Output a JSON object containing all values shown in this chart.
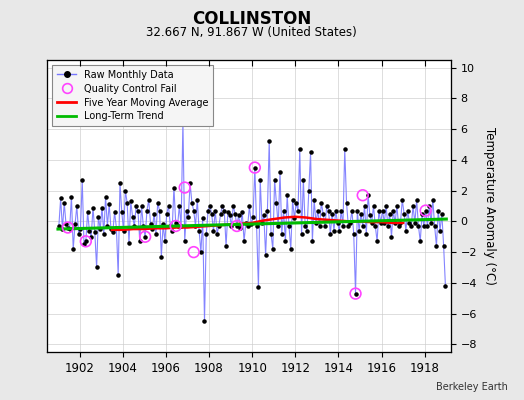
{
  "title": "COLLINSTON",
  "subtitle": "32.667 N, 91.867 W (United States)",
  "ylabel": "Temperature Anomaly (°C)",
  "credit": "Berkeley Earth",
  "xlim": [
    1900.5,
    1919.2
  ],
  "ylim": [
    -8.5,
    10.5
  ],
  "yticks": [
    -8,
    -6,
    -4,
    -2,
    0,
    2,
    4,
    6,
    8,
    10
  ],
  "xticks": [
    1902,
    1904,
    1906,
    1908,
    1910,
    1912,
    1914,
    1916,
    1918
  ],
  "bg_color": "#e8e8e8",
  "plot_bg_color": "#ffffff",
  "raw_line_color": "#7777ff",
  "raw_dot_color": "#000000",
  "qc_fail_color": "#ff44ff",
  "moving_avg_color": "#ff0000",
  "trend_color": "#00bb00",
  "raw_x": [
    1901.042,
    1901.125,
    1901.208,
    1901.292,
    1901.375,
    1901.458,
    1901.542,
    1901.625,
    1901.708,
    1901.792,
    1901.875,
    1901.958,
    1902.042,
    1902.125,
    1902.208,
    1902.292,
    1902.375,
    1902.458,
    1902.542,
    1902.625,
    1902.708,
    1902.792,
    1902.875,
    1902.958,
    1903.042,
    1903.125,
    1903.208,
    1903.292,
    1903.375,
    1903.458,
    1903.542,
    1903.625,
    1903.708,
    1903.792,
    1903.875,
    1903.958,
    1904.042,
    1904.125,
    1904.208,
    1904.292,
    1904.375,
    1904.458,
    1904.542,
    1904.625,
    1904.708,
    1904.792,
    1904.875,
    1904.958,
    1905.042,
    1905.125,
    1905.208,
    1905.292,
    1905.375,
    1905.458,
    1905.542,
    1905.625,
    1905.708,
    1905.792,
    1905.875,
    1905.958,
    1906.042,
    1906.125,
    1906.208,
    1906.292,
    1906.375,
    1906.458,
    1906.542,
    1906.625,
    1906.708,
    1906.792,
    1906.875,
    1906.958,
    1907.042,
    1907.125,
    1907.208,
    1907.292,
    1907.375,
    1907.458,
    1907.542,
    1907.625,
    1907.708,
    1907.792,
    1907.875,
    1907.958,
    1908.042,
    1908.125,
    1908.208,
    1908.292,
    1908.375,
    1908.458,
    1908.542,
    1908.625,
    1908.708,
    1908.792,
    1908.875,
    1908.958,
    1909.042,
    1909.125,
    1909.208,
    1909.292,
    1909.375,
    1909.458,
    1909.542,
    1909.625,
    1909.708,
    1909.792,
    1909.875,
    1909.958,
    1910.042,
    1910.125,
    1910.208,
    1910.292,
    1910.375,
    1910.458,
    1910.542,
    1910.625,
    1910.708,
    1910.792,
    1910.875,
    1910.958,
    1911.042,
    1911.125,
    1911.208,
    1911.292,
    1911.375,
    1911.458,
    1911.542,
    1911.625,
    1911.708,
    1911.792,
    1911.875,
    1911.958,
    1912.042,
    1912.125,
    1912.208,
    1912.292,
    1912.375,
    1912.458,
    1912.542,
    1912.625,
    1912.708,
    1912.792,
    1912.875,
    1912.958,
    1913.042,
    1913.125,
    1913.208,
    1913.292,
    1913.375,
    1913.458,
    1913.542,
    1913.625,
    1913.708,
    1913.792,
    1913.875,
    1913.958,
    1914.042,
    1914.125,
    1914.208,
    1914.292,
    1914.375,
    1914.458,
    1914.542,
    1914.625,
    1914.708,
    1914.792,
    1914.875,
    1914.958,
    1915.042,
    1915.125,
    1915.208,
    1915.292,
    1915.375,
    1915.458,
    1915.542,
    1915.625,
    1915.708,
    1915.792,
    1915.875,
    1915.958,
    1916.042,
    1916.125,
    1916.208,
    1916.292,
    1916.375,
    1916.458,
    1916.542,
    1916.625,
    1916.708,
    1916.792,
    1916.875,
    1916.958,
    1917.042,
    1917.125,
    1917.208,
    1917.292,
    1917.375,
    1917.458,
    1917.542,
    1917.625,
    1917.708,
    1917.792,
    1917.875,
    1917.958,
    1918.042,
    1918.125,
    1918.208,
    1918.292,
    1918.375,
    1918.458,
    1918.542,
    1918.625,
    1918.708,
    1918.792,
    1918.875,
    1918.958
  ],
  "raw_y": [
    -0.3,
    1.5,
    -0.5,
    1.2,
    -0.2,
    -0.4,
    -0.5,
    1.6,
    -1.8,
    -0.2,
    1.0,
    -0.8,
    -0.5,
    2.7,
    -1.5,
    -1.3,
    0.6,
    -0.6,
    -1.0,
    0.9,
    -0.7,
    -3.0,
    0.3,
    -0.5,
    0.9,
    -0.8,
    1.6,
    -0.3,
    1.1,
    -0.5,
    -0.7,
    0.6,
    -0.4,
    -3.5,
    2.5,
    0.6,
    -0.6,
    2.0,
    1.2,
    -1.4,
    1.3,
    0.3,
    -0.3,
    1.0,
    0.7,
    -1.3,
    1.0,
    -0.3,
    -1.0,
    0.7,
    1.4,
    -0.2,
    -0.5,
    0.5,
    -0.8,
    1.2,
    0.7,
    -2.3,
    -0.2,
    -1.3,
    0.5,
    1.0,
    -0.3,
    -0.6,
    2.2,
    -0.1,
    -0.3,
    1.0,
    -0.3,
    6.5,
    -1.3,
    0.7,
    0.3,
    2.5,
    1.2,
    0.7,
    -0.3,
    1.4,
    -0.6,
    -2.0,
    0.2,
    -6.5,
    -0.8,
    0.7,
    1.0,
    0.5,
    -0.6,
    0.7,
    -0.8,
    -0.3,
    0.5,
    1.0,
    0.7,
    -1.6,
    0.6,
    0.4,
    -0.3,
    1.0,
    0.5,
    -0.3,
    0.4,
    -0.4,
    0.6,
    -1.3,
    -0.1,
    -0.3,
    1.0,
    -0.2,
    0.3,
    3.5,
    -0.3,
    -4.3,
    2.7,
    -0.1,
    0.4,
    -2.2,
    0.7,
    5.2,
    -0.8,
    -1.8,
    2.7,
    1.2,
    -0.3,
    3.2,
    -0.8,
    0.7,
    -1.3,
    1.7,
    -0.3,
    -1.8,
    1.4,
    0.2,
    1.2,
    0.7,
    4.7,
    -0.8,
    2.7,
    -0.3,
    -0.6,
    2.0,
    4.5,
    -1.3,
    1.4,
    -0.1,
    0.7,
    -0.3,
    1.2,
    0.5,
    -0.3,
    1.0,
    0.7,
    -0.8,
    0.5,
    -0.6,
    0.7,
    -0.1,
    -0.6,
    0.7,
    -0.3,
    4.7,
    1.2,
    -0.3,
    -0.1,
    0.7,
    -0.8,
    -4.7,
    0.7,
    -0.6,
    0.5,
    -0.3,
    1.0,
    -0.8,
    1.7,
    0.4,
    -0.1,
    1.0,
    -0.3,
    -1.3,
    0.7,
    -0.1,
    0.7,
    -0.1,
    1.0,
    -0.3,
    0.5,
    -1.0,
    0.7,
    -0.1,
    1.0,
    -0.3,
    -0.1,
    1.4,
    0.5,
    -0.6,
    0.7,
    -0.1,
    -0.3,
    1.0,
    -0.1,
    1.4,
    -0.3,
    -1.3,
    0.5,
    -0.3,
    0.7,
    -0.3,
    1.0,
    -0.1,
    1.4,
    -0.3,
    -1.6,
    0.7,
    -0.6,
    0.5,
    -1.6,
    -4.2
  ],
  "qc_fail_x": [
    1901.458,
    1902.292,
    1905.042,
    1906.458,
    1906.875,
    1907.292,
    1909.292,
    1910.125,
    1914.792,
    1915.125,
    1918.042
  ],
  "qc_fail_y": [
    -0.4,
    -1.3,
    -1.0,
    -0.3,
    2.2,
    -2.0,
    -0.3,
    3.5,
    -4.7,
    1.7,
    0.7
  ],
  "moving_avg_x": [
    1903.5,
    1904.0,
    1904.5,
    1905.0,
    1905.5,
    1906.0,
    1906.5,
    1907.0,
    1907.5,
    1908.0,
    1908.5,
    1909.0,
    1909.5,
    1910.0,
    1910.5,
    1911.0,
    1911.5,
    1912.0,
    1912.5,
    1913.0,
    1913.5,
    1914.0,
    1914.5,
    1915.0,
    1915.5,
    1916.0,
    1916.5,
    1917.0
  ],
  "moving_avg_y": [
    -0.55,
    -0.55,
    -0.5,
    -0.5,
    -0.45,
    -0.45,
    -0.4,
    -0.4,
    -0.35,
    -0.3,
    -0.25,
    -0.2,
    -0.15,
    -0.1,
    0.05,
    0.15,
    0.25,
    0.3,
    0.25,
    0.15,
    0.1,
    0.05,
    0.0,
    0.0,
    -0.05,
    -0.05,
    -0.1,
    -0.1
  ],
  "trend_x": [
    1901.0,
    1919.0
  ],
  "trend_y": [
    -0.5,
    0.15
  ]
}
